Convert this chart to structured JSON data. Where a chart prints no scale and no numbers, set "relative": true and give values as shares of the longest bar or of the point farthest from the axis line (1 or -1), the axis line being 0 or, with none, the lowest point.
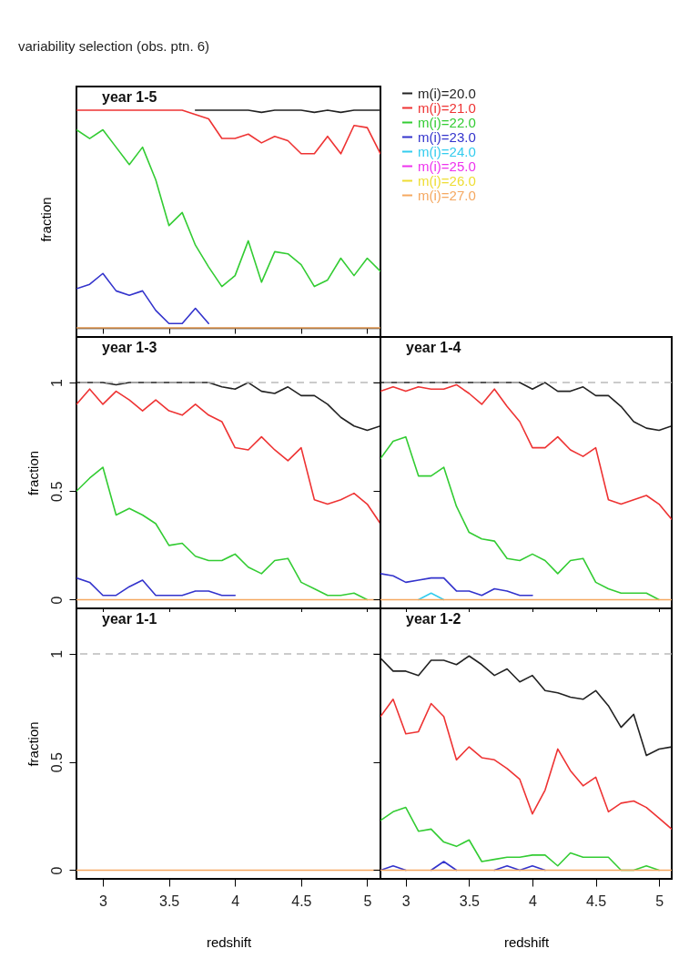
{
  "chart_data": [
    {
      "type": "line",
      "title": "variability selection (obs. ptn. 6)",
      "annotations": [
        "year 1-5"
      ],
      "ylabel": "fraction",
      "relative": true,
      "tick_labels": false,
      "legend": "right",
      "line_style": "solid",
      "xlim": [
        2.8,
        5.1
      ],
      "xticks": [
        3,
        3.5,
        4,
        4.5,
        5
      ],
      "x": [
        2.8,
        2.9,
        3,
        3.1,
        3.2,
        3.3,
        3.4,
        3.5,
        3.6,
        3.7,
        3.8,
        3.9,
        4,
        4.1,
        4.2,
        4.3,
        4.4,
        4.5,
        4.6,
        4.7,
        4.8,
        4.9,
        5,
        5.1
      ],
      "series": [
        {
          "name": "m(i)=20.0",
          "color": "#222222",
          "values": [
            null,
            null,
            null,
            null,
            null,
            null,
            null,
            null,
            null,
            1,
            1,
            1,
            1,
            1,
            0.99,
            1,
            1,
            1,
            0.99,
            1,
            0.99,
            1,
            1,
            1
          ]
        },
        {
          "name": "m(i)=21.0",
          "color": "#ee3333",
          "values": [
            1,
            1,
            1,
            1,
            1,
            1,
            1,
            1,
            1,
            0.98,
            0.96,
            0.87,
            0.87,
            0.89,
            0.85,
            0.88,
            0.86,
            0.8,
            0.8,
            0.88,
            0.8,
            0.93,
            0.92,
            0.8
          ]
        },
        {
          "name": "m(i)=22.0",
          "color": "#33cc33",
          "values": [
            0.91,
            0.87,
            0.91,
            0.83,
            0.75,
            0.83,
            0.68,
            0.47,
            0.53,
            0.38,
            0.28,
            0.19,
            0.24,
            0.4,
            0.21,
            0.35,
            0.34,
            0.29,
            0.19,
            0.22,
            0.32,
            0.24,
            0.32,
            0.26
          ]
        },
        {
          "name": "m(i)=23.0",
          "color": "#3333cc",
          "values": [
            0.18,
            0.2,
            0.25,
            0.17,
            0.15,
            0.17,
            0.08,
            0.02,
            0.02,
            0.09,
            0.02,
            null,
            null,
            null,
            null,
            null,
            null,
            null,
            null,
            null,
            null,
            null,
            null,
            null
          ]
        },
        {
          "name": "m(i)=24.0",
          "color": "#33ccee",
          "values": [
            null,
            null,
            null,
            null,
            null,
            null,
            null,
            null,
            null,
            null,
            null,
            null,
            null,
            null,
            null,
            null,
            null,
            null,
            null,
            null,
            null,
            null,
            null,
            null
          ]
        },
        {
          "name": "m(i)=25.0",
          "color": "#ee33ee",
          "values": [
            null,
            null,
            null,
            null,
            null,
            null,
            null,
            null,
            null,
            null,
            null,
            null,
            null,
            null,
            null,
            null,
            null,
            null,
            null,
            null,
            null,
            null,
            null,
            null
          ]
        },
        {
          "name": "m(i)=26.0",
          "color": "#eedd33",
          "values": [
            null,
            null,
            null,
            null,
            null,
            null,
            null,
            null,
            null,
            null,
            null,
            null,
            null,
            null,
            null,
            null,
            null,
            null,
            null,
            null,
            null,
            null,
            null,
            null
          ]
        },
        {
          "name": "m(i)=27.0",
          "color": "#f5a860",
          "values": [
            0,
            0,
            0,
            0,
            0,
            0,
            0,
            0,
            0,
            0,
            0,
            0,
            0,
            0,
            0,
            0,
            0,
            0,
            0,
            0,
            0,
            0,
            0,
            0
          ]
        }
      ]
    },
    {
      "type": "line",
      "annotations": [
        "year 1-3"
      ],
      "ylabel": "fraction",
      "tick_labels": "y",
      "line_style": "solid",
      "xlim": [
        2.8,
        5.1
      ],
      "ylim": [
        -0.04,
        1.21
      ],
      "xticks": [
        3,
        3.5,
        4,
        4.5,
        5
      ],
      "yticks": [
        0,
        0.5,
        1
      ],
      "ref_lines": [
        {
          "axis": "y",
          "value": 1,
          "color": "#bbbbbb",
          "line_style": "dashed"
        }
      ],
      "x": [
        2.8,
        2.9,
        3,
        3.1,
        3.2,
        3.3,
        3.4,
        3.5,
        3.6,
        3.7,
        3.8,
        3.9,
        4,
        4.1,
        4.2,
        4.3,
        4.4,
        4.5,
        4.6,
        4.7,
        4.8,
        4.9,
        5,
        5.1
      ],
      "series": [
        {
          "color": "#222222",
          "values": [
            1,
            1,
            1,
            0.99,
            1,
            1,
            1,
            1,
            1,
            1,
            1,
            0.98,
            0.97,
            1,
            0.96,
            0.95,
            0.98,
            0.94,
            0.94,
            0.9,
            0.84,
            0.8,
            0.78,
            0.8
          ]
        },
        {
          "color": "#ee3333",
          "values": [
            0.9,
            0.97,
            0.9,
            0.96,
            0.92,
            0.87,
            0.92,
            0.87,
            0.85,
            0.9,
            0.85,
            0.82,
            0.7,
            0.69,
            0.75,
            0.69,
            0.64,
            0.7,
            0.46,
            0.44,
            0.46,
            0.49,
            0.44,
            0.35
          ]
        },
        {
          "color": "#33cc33",
          "values": [
            0.5,
            0.56,
            0.61,
            0.39,
            0.42,
            0.39,
            0.35,
            0.25,
            0.26,
            0.2,
            0.18,
            0.18,
            0.21,
            0.15,
            0.12,
            0.18,
            0.19,
            0.08,
            0.05,
            0.02,
            0.02,
            0.03,
            0,
            null
          ]
        },
        {
          "color": "#3333cc",
          "values": [
            0.1,
            0.08,
            0.02,
            0.02,
            0.06,
            0.09,
            0.02,
            0.02,
            0.02,
            0.04,
            0.04,
            0.02,
            0.02,
            null,
            null,
            null,
            null,
            null,
            null,
            null,
            null,
            null,
            null,
            null
          ]
        },
        {
          "color": "#33ccee",
          "values": [
            null,
            null,
            null,
            null,
            null,
            null,
            null,
            null,
            null,
            null,
            null,
            null,
            null,
            null,
            null,
            null,
            null,
            null,
            null,
            null,
            null,
            null,
            null,
            null
          ]
        },
        {
          "color": "#ee33ee",
          "values": [
            null,
            null,
            null,
            null,
            null,
            null,
            null,
            null,
            null,
            null,
            null,
            null,
            null,
            null,
            null,
            null,
            null,
            null,
            null,
            null,
            null,
            null,
            null,
            null
          ]
        },
        {
          "color": "#eedd33",
          "values": [
            null,
            null,
            null,
            null,
            null,
            null,
            null,
            null,
            null,
            null,
            null,
            null,
            null,
            null,
            null,
            null,
            null,
            null,
            null,
            null,
            null,
            null,
            null,
            null
          ]
        },
        {
          "color": "#f5a860",
          "values": [
            0,
            0,
            0,
            0,
            0,
            0,
            0,
            0,
            0,
            0,
            0,
            0,
            0,
            0,
            0,
            0,
            0,
            0,
            0,
            0,
            0,
            0,
            0,
            0
          ]
        }
      ]
    },
    {
      "type": "line",
      "annotations": [
        "year 1-4"
      ],
      "tick_labels": false,
      "line_style": "solid",
      "xlim": [
        2.8,
        5.1
      ],
      "ylim": [
        -0.04,
        1.21
      ],
      "xticks": [
        3,
        3.5,
        4,
        4.5,
        5
      ],
      "yticks": [
        0,
        0.5,
        1
      ],
      "ref_lines": [
        {
          "axis": "y",
          "value": 1,
          "color": "#bbbbbb",
          "line_style": "dashed"
        }
      ],
      "x": [
        2.8,
        2.9,
        3,
        3.1,
        3.2,
        3.3,
        3.4,
        3.5,
        3.6,
        3.7,
        3.8,
        3.9,
        4,
        4.1,
        4.2,
        4.3,
        4.4,
        4.5,
        4.6,
        4.7,
        4.8,
        4.9,
        5,
        5.1
      ],
      "series": [
        {
          "color": "#222222",
          "values": [
            1,
            1,
            1,
            1,
            1,
            1,
            1,
            1,
            1,
            1,
            1,
            1,
            0.97,
            1,
            0.96,
            0.96,
            0.98,
            0.94,
            0.94,
            0.89,
            0.82,
            0.79,
            0.78,
            0.8
          ]
        },
        {
          "color": "#ee3333",
          "values": [
            0.96,
            0.98,
            0.96,
            0.98,
            0.97,
            0.97,
            0.99,
            0.95,
            0.9,
            0.97,
            0.89,
            0.82,
            0.7,
            0.7,
            0.75,
            0.69,
            0.66,
            0.7,
            0.46,
            0.44,
            0.46,
            0.48,
            0.44,
            0.37
          ]
        },
        {
          "color": "#33cc33",
          "values": [
            0.65,
            0.73,
            0.75,
            0.57,
            0.57,
            0.61,
            0.43,
            0.31,
            0.28,
            0.27,
            0.19,
            0.18,
            0.21,
            0.18,
            0.12,
            0.18,
            0.19,
            0.08,
            0.05,
            0.03,
            0.03,
            0.03,
            0,
            null
          ]
        },
        {
          "color": "#3333cc",
          "values": [
            0.12,
            0.11,
            0.08,
            0.09,
            0.1,
            0.1,
            0.04,
            0.04,
            0.02,
            0.05,
            0.04,
            0.02,
            0.02,
            null,
            null,
            null,
            null,
            null,
            null,
            null,
            null,
            null,
            null,
            null
          ]
        },
        {
          "color": "#33ccee",
          "values": [
            null,
            null,
            null,
            0,
            0.03,
            0,
            null,
            null,
            null,
            null,
            null,
            null,
            null,
            null,
            null,
            null,
            null,
            null,
            null,
            null,
            null,
            null,
            null,
            null
          ]
        },
        {
          "color": "#ee33ee",
          "values": [
            null,
            null,
            null,
            null,
            null,
            null,
            null,
            null,
            null,
            null,
            null,
            null,
            null,
            null,
            null,
            null,
            null,
            null,
            null,
            null,
            null,
            null,
            null,
            null
          ]
        },
        {
          "color": "#eedd33",
          "values": [
            null,
            null,
            null,
            null,
            null,
            null,
            null,
            null,
            null,
            null,
            null,
            null,
            null,
            null,
            null,
            null,
            null,
            null,
            null,
            null,
            null,
            null,
            null,
            null
          ]
        },
        {
          "color": "#f5a860",
          "values": [
            0,
            0,
            0,
            0,
            0,
            0,
            0,
            0,
            0,
            0,
            0,
            0,
            0,
            0,
            0,
            0,
            0,
            0,
            0,
            0,
            0,
            0,
            0,
            0
          ]
        }
      ]
    },
    {
      "type": "line",
      "annotations": [
        "year 1-1"
      ],
      "xlabel": "redshift",
      "ylabel": "fraction",
      "line_style": "solid",
      "xlim": [
        2.8,
        5.1
      ],
      "ylim": [
        -0.04,
        1.21
      ],
      "xticks": [
        3,
        3.5,
        4,
        4.5,
        5
      ],
      "yticks": [
        0,
        0.5,
        1
      ],
      "ref_lines": [
        {
          "axis": "y",
          "value": 1,
          "color": "#bbbbbb",
          "line_style": "dashed"
        }
      ],
      "x": [
        2.8,
        2.9,
        3,
        3.1,
        3.2,
        3.3,
        3.4,
        3.5,
        3.6,
        3.7,
        3.8,
        3.9,
        4,
        4.1,
        4.2,
        4.3,
        4.4,
        4.5,
        4.6,
        4.7,
        4.8,
        4.9,
        5,
        5.1
      ],
      "series": [
        {
          "color": "#f5a860",
          "values": [
            0,
            0,
            0,
            0,
            0,
            0,
            0,
            0,
            0,
            0,
            0,
            0,
            0,
            0,
            0,
            0,
            0,
            0,
            0,
            0,
            0,
            0,
            0,
            0
          ]
        }
      ]
    },
    {
      "type": "line",
      "annotations": [
        "year 1-2"
      ],
      "xlabel": "redshift",
      "tick_labels": "x",
      "line_style": "solid",
      "xlim": [
        2.8,
        5.1
      ],
      "ylim": [
        -0.04,
        1.21
      ],
      "xticks": [
        3,
        3.5,
        4,
        4.5,
        5
      ],
      "yticks": [
        0,
        0.5,
        1
      ],
      "ref_lines": [
        {
          "axis": "y",
          "value": 1,
          "color": "#bbbbbb",
          "line_style": "dashed"
        }
      ],
      "x": [
        2.8,
        2.9,
        3,
        3.1,
        3.2,
        3.3,
        3.4,
        3.5,
        3.6,
        3.7,
        3.8,
        3.9,
        4,
        4.1,
        4.2,
        4.3,
        4.4,
        4.5,
        4.6,
        4.7,
        4.8,
        4.9,
        5,
        5.1
      ],
      "series": [
        {
          "color": "#222222",
          "values": [
            0.98,
            0.92,
            0.92,
            0.9,
            0.97,
            0.97,
            0.95,
            0.99,
            0.95,
            0.9,
            0.93,
            0.87,
            0.9,
            0.83,
            0.82,
            0.8,
            0.79,
            0.83,
            0.76,
            0.66,
            0.72,
            0.53,
            0.56,
            0.57
          ]
        },
        {
          "color": "#ee3333",
          "values": [
            0.71,
            0.79,
            0.63,
            0.64,
            0.77,
            0.71,
            0.51,
            0.57,
            0.52,
            0.51,
            0.47,
            0.42,
            0.26,
            0.37,
            0.56,
            0.46,
            0.39,
            0.43,
            0.27,
            0.31,
            0.32,
            0.29,
            0.24,
            0.19
          ]
        },
        {
          "color": "#33cc33",
          "values": [
            0.23,
            0.27,
            0.29,
            0.18,
            0.19,
            0.13,
            0.11,
            0.14,
            0.04,
            0.05,
            0.06,
            0.06,
            0.07,
            0.07,
            0.02,
            0.08,
            0.06,
            0.06,
            0.06,
            0,
            0,
            0.02,
            0,
            null
          ]
        },
        {
          "color": "#3333cc",
          "values": [
            0,
            0.02,
            0,
            null,
            0,
            0.04,
            0,
            null,
            null,
            0,
            0.02,
            0,
            0.02,
            0,
            null,
            null,
            null,
            null,
            null,
            null,
            null,
            null,
            null,
            null
          ]
        },
        {
          "color": "#f5a860",
          "values": [
            0,
            0,
            0,
            0,
            0,
            0,
            0,
            0,
            0,
            0,
            0,
            0,
            0,
            0,
            0,
            0,
            0,
            0,
            0,
            0,
            0,
            0,
            0,
            0
          ]
        }
      ]
    }
  ]
}
